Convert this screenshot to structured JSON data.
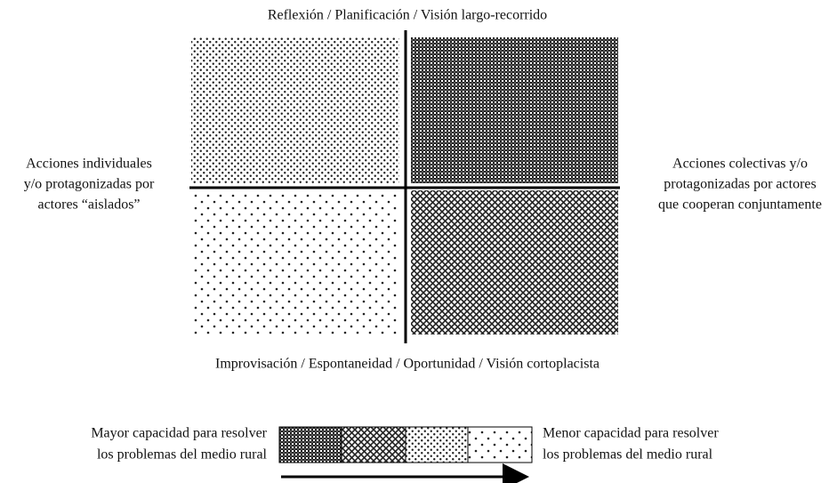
{
  "axes": {
    "top": "Reflexión / Planificación / Visión largo-recorrido",
    "bottom": "Improvisación / Espontaneidad / Oportunidad / Visión cortoplacista",
    "left": [
      "Acciones individuales",
      "y/o protagonizadas por",
      "actores “aislados”"
    ],
    "right": [
      "Acciones colectivas y/o",
      "protagonizadas por actores",
      "que cooperan conjuntamente"
    ]
  },
  "legend": {
    "left": [
      "Mayor capacidad para resolver",
      "los problemas del medio rural"
    ],
    "right": [
      "Menor capacidad para resolver",
      "los problemas del medio rural"
    ]
  }
}
